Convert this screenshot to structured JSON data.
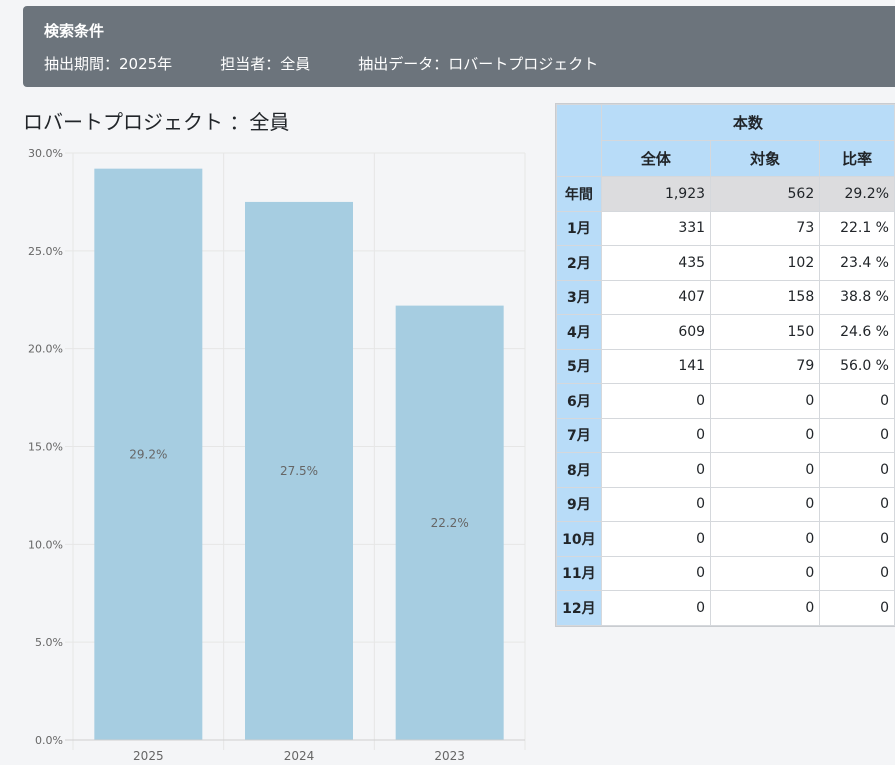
{
  "conditions": {
    "title": "検索条件",
    "period": "抽出期間：2025年",
    "person": "担当者：全員",
    "data": "抽出データ：ロバートプロジェクト"
  },
  "chart_title": "ロバートプロジェクト ：全員",
  "chart_data": {
    "type": "bar",
    "categories": [
      "2025",
      "2024",
      "2023"
    ],
    "values": [
      29.2,
      27.5,
      22.2
    ],
    "data_labels": [
      "29.2%",
      "27.5%",
      "22.2%"
    ],
    "ylim": [
      0,
      30
    ],
    "yticks": [
      "0.0%",
      "5.0%",
      "10.0%",
      "15.0%",
      "20.0%",
      "25.0%",
      "30.0%"
    ],
    "grid": true,
    "color": "#a6cde1"
  },
  "table": {
    "group_header": "本数",
    "columns": [
      "全体",
      "対象",
      "比率"
    ],
    "rows": [
      {
        "label": "年間",
        "total": "1,923",
        "target": "562",
        "ratio": "29.2%"
      },
      {
        "label": "1月",
        "total": "331",
        "target": "73",
        "ratio": "22.1 %"
      },
      {
        "label": "2月",
        "total": "435",
        "target": "102",
        "ratio": "23.4 %"
      },
      {
        "label": "3月",
        "total": "407",
        "target": "158",
        "ratio": "38.8 %"
      },
      {
        "label": "4月",
        "total": "609",
        "target": "150",
        "ratio": "24.6 %"
      },
      {
        "label": "5月",
        "total": "141",
        "target": "79",
        "ratio": "56.0 %"
      },
      {
        "label": "6月",
        "total": "0",
        "target": "0",
        "ratio": "0"
      },
      {
        "label": "7月",
        "total": "0",
        "target": "0",
        "ratio": "0"
      },
      {
        "label": "8月",
        "total": "0",
        "target": "0",
        "ratio": "0"
      },
      {
        "label": "9月",
        "total": "0",
        "target": "0",
        "ratio": "0"
      },
      {
        "label": "10月",
        "total": "0",
        "target": "0",
        "ratio": "0"
      },
      {
        "label": "11月",
        "total": "0",
        "target": "0",
        "ratio": "0"
      },
      {
        "label": "12月",
        "total": "0",
        "target": "0",
        "ratio": "0"
      }
    ]
  }
}
